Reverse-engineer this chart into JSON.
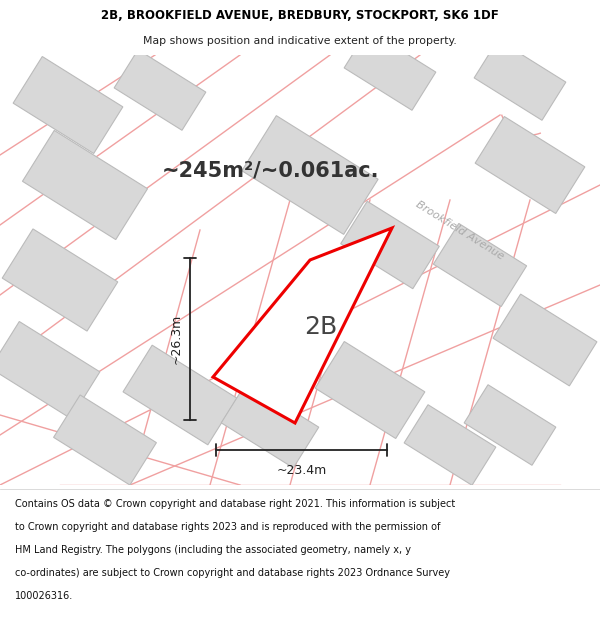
{
  "title_line1": "2B, BROOKFIELD AVENUE, BREDBURY, STOCKPORT, SK6 1DF",
  "title_line2": "Map shows position and indicative extent of the property.",
  "area_label": "~245m²/~0.061ac.",
  "property_label": "2B",
  "dim_width": "~23.4m",
  "dim_height": "~26.3m",
  "street_label": "Brookfield Avenue",
  "footer_lines": [
    "Contains OS data © Crown copyright and database right 2021. This information is subject",
    "to Crown copyright and database rights 2023 and is reproduced with the permission of",
    "HM Land Registry. The polygons (including the associated geometry, namely x, y",
    "co-ordinates) are subject to Crown copyright and database rights 2023 Ordnance Survey",
    "100026316."
  ],
  "map_bg": "#ffffff",
  "building_color": "#d8d8d8",
  "building_edge": "#bbbbbb",
  "road_color": "#ffffff",
  "plot_line_color": "#f0a0a0",
  "property_outline_color": "#ee0000",
  "dim_line_color": "#222222",
  "title_bg": "#ffffff",
  "footer_bg": "#ffffff",
  "area_text_color": "#333333",
  "label_color": "#444444",
  "street_color": "#aaaaaa"
}
